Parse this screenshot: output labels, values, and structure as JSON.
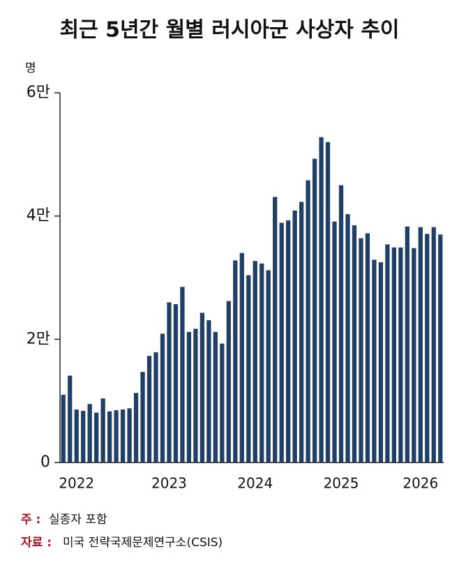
{
  "chart_data": {
    "type": "bar",
    "title": "최근 5년간 월별 러시아군 사상자 추이",
    "y_unit": "명",
    "categories": [
      null,
      null,
      "2022",
      null,
      null,
      null,
      null,
      null,
      null,
      null,
      null,
      null,
      null,
      null,
      null,
      null,
      "2023",
      null,
      null,
      null,
      null,
      null,
      null,
      null,
      null,
      null,
      null,
      null,
      null,
      "2024",
      null,
      null,
      null,
      null,
      null,
      null,
      null,
      null,
      null,
      null,
      null,
      null,
      "2025",
      null,
      null,
      null,
      null,
      null,
      null,
      null,
      null,
      null,
      null,
      null,
      "2026",
      null,
      null,
      null
    ],
    "values": [
      11000,
      14100,
      8600,
      8400,
      9500,
      8100,
      10400,
      8300,
      8500,
      8600,
      8800,
      11300,
      14700,
      17300,
      17900,
      20900,
      26000,
      25700,
      28500,
      21200,
      21700,
      24300,
      23100,
      21200,
      19300,
      26200,
      32800,
      34000,
      30400,
      32700,
      32300,
      31200,
      43100,
      38900,
      39300,
      40900,
      42300,
      45800,
      49300,
      52800,
      52000,
      39100,
      45000,
      40300,
      38500,
      36400,
      37200,
      32900,
      32500,
      35400,
      34900,
      34900,
      38300,
      34800,
      38200,
      37100,
      38200,
      37000
    ],
    "color": "#1f3f66",
    "ylim": [
      0,
      60000
    ],
    "yticks": [
      0,
      {
        "value": 20000,
        "label": "2만"
      },
      {
        "value": 40000,
        "label": "4만"
      },
      {
        "value": 60000,
        "label": "6만"
      }
    ],
    "grid": false,
    "notes": [
      {
        "prefix": "주 :",
        "text": "실종자 포함"
      },
      {
        "prefix": "자료 :",
        "text": "미국 전략국제문제연구소(CSIS)"
      }
    ]
  }
}
